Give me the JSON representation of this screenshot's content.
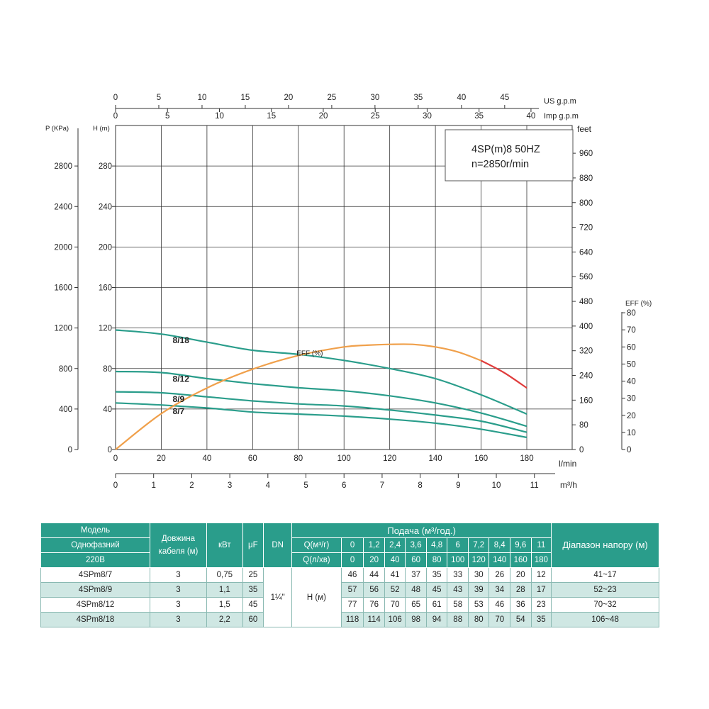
{
  "chart_data": {
    "type": "line",
    "info_box": {
      "line1": "4SP(m)8  50HZ",
      "line2": "n=2850r/min"
    },
    "x_flow": {
      "unit": "l/min",
      "range": [
        0,
        180
      ],
      "ticks": [
        "0",
        "20",
        "40",
        "60",
        "80",
        "100",
        "120",
        "140",
        "160",
        "180"
      ],
      "tick_values": [
        0,
        20,
        40,
        60,
        80,
        100,
        120,
        140,
        160,
        180
      ]
    },
    "x_m3h": {
      "unit": "m³/h",
      "range": [
        0,
        11
      ],
      "ticks": [
        "0",
        "1",
        "2",
        "3",
        "4",
        "5",
        "6",
        "7",
        "8",
        "9",
        "10",
        "11"
      ],
      "tick_values": [
        0,
        1,
        2,
        3,
        4,
        5,
        6,
        7,
        8,
        9,
        10,
        11
      ]
    },
    "x_us_gpm": {
      "unit": "US g.p.m",
      "ticks": [
        "0",
        "5",
        "10",
        "15",
        "20",
        "25",
        "30",
        "35",
        "40",
        "45"
      ],
      "tick_values": [
        0,
        5,
        10,
        15,
        20,
        25,
        30,
        35,
        40,
        45
      ]
    },
    "x_imp_gpm": {
      "unit": "Imp g.p.m",
      "ticks": [
        "0",
        "5",
        "10",
        "15",
        "20",
        "25",
        "30",
        "35",
        "40"
      ],
      "tick_values": [
        0,
        5,
        10,
        15,
        20,
        25,
        30,
        35,
        40
      ]
    },
    "y_head": {
      "label": "H (m)",
      "range": [
        0,
        320
      ],
      "ticks": [
        "0",
        "40",
        "80",
        "120",
        "160",
        "200",
        "240",
        "280"
      ],
      "tick_values": [
        0,
        40,
        80,
        120,
        160,
        200,
        240,
        280
      ]
    },
    "y_pressure": {
      "label": "P (KPa)",
      "ticks": [
        "0",
        "400",
        "800",
        "1200",
        "1600",
        "2000",
        "2400",
        "2800"
      ],
      "tick_values": [
        0,
        400,
        800,
        1200,
        1600,
        2000,
        2400,
        2800
      ]
    },
    "y_feet": {
      "label": "feet",
      "ticks": [
        "0",
        "80",
        "160",
        "240",
        "320",
        "400",
        "480",
        "560",
        "640",
        "720",
        "800",
        "880",
        "960"
      ],
      "tick_values": [
        0,
        80,
        160,
        240,
        320,
        400,
        480,
        560,
        640,
        720,
        800,
        880,
        960
      ]
    },
    "y_eff": {
      "label": "EFF (%)",
      "range": [
        0,
        90
      ],
      "ticks": [
        "0",
        "10",
        "20",
        "30",
        "40",
        "50",
        "60",
        "70",
        "80"
      ],
      "tick_values": [
        0,
        10,
        20,
        30,
        40,
        50,
        60,
        70,
        80
      ]
    },
    "x": [
      0,
      20,
      40,
      60,
      80,
      100,
      120,
      140,
      160,
      180
    ],
    "series": [
      {
        "name": "8/18",
        "values": [
          118,
          114,
          106,
          98,
          94,
          88,
          80,
          70,
          54,
          35
        ]
      },
      {
        "name": "8/12",
        "values": [
          77,
          76,
          70,
          65,
          61,
          58,
          53,
          46,
          36,
          23
        ]
      },
      {
        "name": "8/9",
        "values": [
          57,
          56,
          52,
          48,
          45,
          43,
          39,
          34,
          28,
          17
        ]
      },
      {
        "name": "8/7",
        "values": [
          46,
          44,
          41,
          37,
          35,
          33,
          30,
          26,
          20,
          12
        ]
      }
    ],
    "efficiency": {
      "name": "EFF (%)",
      "x": [
        0,
        20,
        40,
        60,
        80,
        100,
        110,
        120,
        130,
        140,
        150,
        160,
        170,
        180
      ],
      "values": [
        0,
        21,
        36,
        47,
        55,
        60,
        61,
        61.5,
        61.5,
        60,
        57,
        52,
        45,
        36
      ],
      "red_from": 160
    },
    "colors": {
      "curve": "#2a9d8b",
      "eff": "#f0a04b",
      "eff_end": "#e03c3c",
      "grid": "#333333"
    }
  },
  "table": {
    "header": {
      "model": "Модель",
      "single_phase": "Однофазний",
      "voltage": "220В",
      "cable": "Довжина кабеля (м)",
      "kw": "кВт",
      "uf": "μF",
      "dn": "DN",
      "supply": "Подача (м³/год.)",
      "q_m3h": "Q(м³/г)",
      "q_lmin": "Q(л/хв)",
      "range": "Діапазон напору (м)"
    },
    "q_m3h": [
      "0",
      "1,2",
      "2,4",
      "3,6",
      "4,8",
      "6",
      "7,2",
      "8,4",
      "9,6",
      "11"
    ],
    "q_lmin": [
      "0",
      "20",
      "40",
      "60",
      "80",
      "100",
      "120",
      "140",
      "160",
      "180"
    ],
    "dn": "1¼\"",
    "h_label": "H (м)",
    "rows": [
      {
        "model": "4SPm8/7",
        "cable": "3",
        "kw": "0,75",
        "uf": "25",
        "h": [
          "46",
          "44",
          "41",
          "37",
          "35",
          "33",
          "30",
          "26",
          "20",
          "12"
        ],
        "range": "41~17"
      },
      {
        "model": "4SPm8/9",
        "cable": "3",
        "kw": "1,1",
        "uf": "35",
        "h": [
          "57",
          "56",
          "52",
          "48",
          "45",
          "43",
          "39",
          "34",
          "28",
          "17"
        ],
        "range": "52~23"
      },
      {
        "model": "4SPm8/12",
        "cable": "3",
        "kw": "1,5",
        "uf": "45",
        "h": [
          "77",
          "76",
          "70",
          "65",
          "61",
          "58",
          "53",
          "46",
          "36",
          "23"
        ],
        "range": "70~32"
      },
      {
        "model": "4SPm8/18",
        "cable": "3",
        "kw": "2,2",
        "uf": "60",
        "h": [
          "118",
          "114",
          "106",
          "98",
          "94",
          "88",
          "80",
          "70",
          "54",
          "35"
        ],
        "range": "106~48"
      }
    ]
  }
}
